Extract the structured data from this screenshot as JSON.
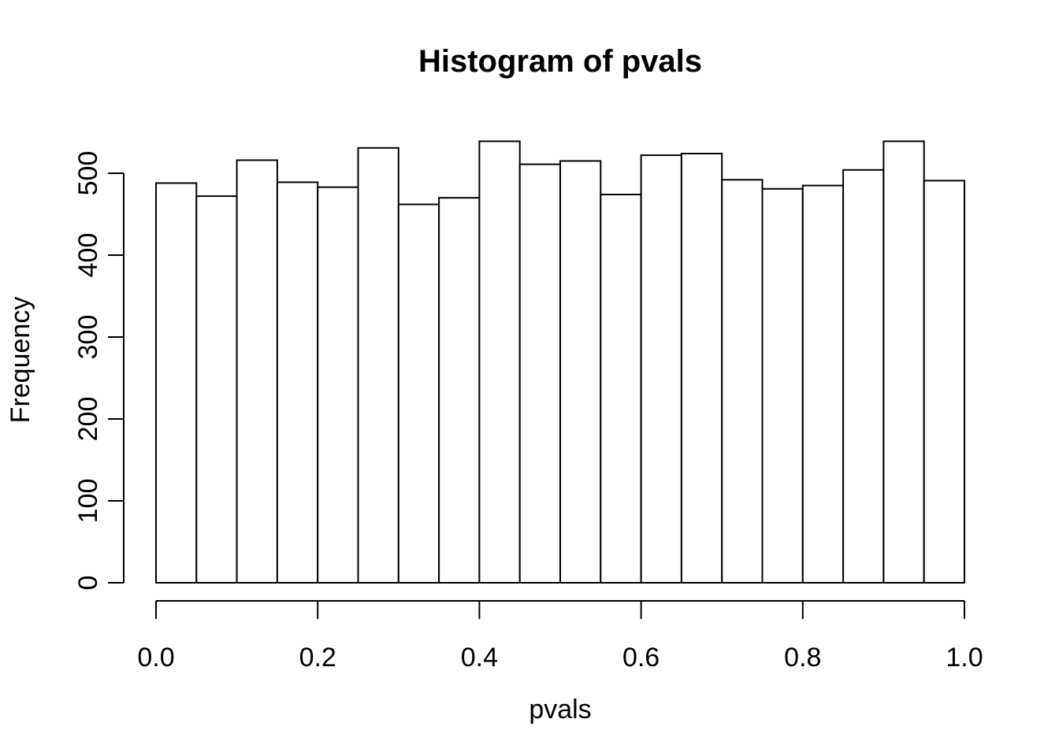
{
  "chart_data": {
    "type": "bar",
    "subtype": "histogram",
    "title": "Histogram of pvals",
    "xlabel": "pvals",
    "ylabel": "Frequency",
    "xlim": [
      0.0,
      1.0
    ],
    "ylim": [
      0,
      545
    ],
    "grid": false,
    "legend": null,
    "bin_width": 0.05,
    "bin_edges": [
      0.0,
      0.05,
      0.1,
      0.15,
      0.2,
      0.25,
      0.3,
      0.35,
      0.4,
      0.45,
      0.5,
      0.55,
      0.6,
      0.65,
      0.7,
      0.75,
      0.8,
      0.85,
      0.9,
      0.95,
      1.0
    ],
    "counts": [
      488,
      472,
      516,
      489,
      483,
      531,
      462,
      470,
      539,
      511,
      515,
      474,
      522,
      524,
      492,
      481,
      485,
      504,
      539,
      491
    ],
    "x_ticks": [
      0.0,
      0.2,
      0.4,
      0.6,
      0.8,
      1.0
    ],
    "x_tick_labels": [
      "0.0",
      "0.2",
      "0.4",
      "0.6",
      "0.8",
      "1.0"
    ],
    "y_ticks": [
      0,
      100,
      200,
      300,
      400,
      500
    ],
    "y_tick_labels": [
      "0",
      "100",
      "200",
      "300",
      "400",
      "500"
    ],
    "colors": {
      "bar_fill": "#ffffff",
      "bar_stroke": "#000000",
      "axis": "#000000",
      "text": "#000000",
      "background": "#ffffff"
    }
  }
}
